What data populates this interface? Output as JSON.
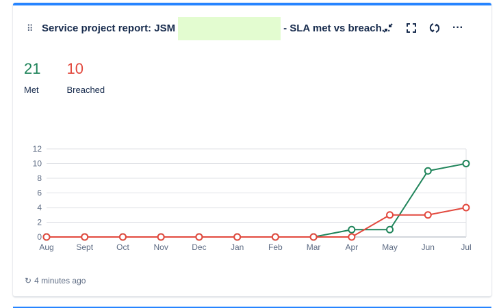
{
  "header": {
    "title_prefix": "Service project report: JSM",
    "title_suffix": "- SLA met vs breach...",
    "actions": [
      "minimize-icon",
      "fullscreen-icon",
      "refresh-icon",
      "more-icon"
    ],
    "more_label": "···"
  },
  "stats": [
    {
      "value": "21",
      "label": "Met",
      "color": "#1f845a"
    },
    {
      "value": "10",
      "label": "Breached",
      "color": "#e2483d"
    }
  ],
  "footer": {
    "updated": "4 minutes ago"
  },
  "chart_data": {
    "type": "line",
    "categories": [
      "Aug",
      "Sept",
      "Oct",
      "Nov",
      "Dec",
      "Jan",
      "Feb",
      "Mar",
      "Apr",
      "May",
      "Jun",
      "Jul"
    ],
    "ylim": [
      0,
      12
    ],
    "yticks": [
      0,
      2,
      4,
      6,
      8,
      10,
      12
    ],
    "grid": true,
    "series": [
      {
        "values": [
          0,
          0,
          0,
          0,
          0,
          0,
          0,
          0,
          1,
          1,
          9,
          10
        ],
        "color": "#1f845a"
      },
      {
        "values": [
          0,
          0,
          0,
          0,
          0,
          0,
          0,
          0,
          0,
          3,
          3,
          4
        ],
        "color": "#e2483d"
      }
    ]
  }
}
